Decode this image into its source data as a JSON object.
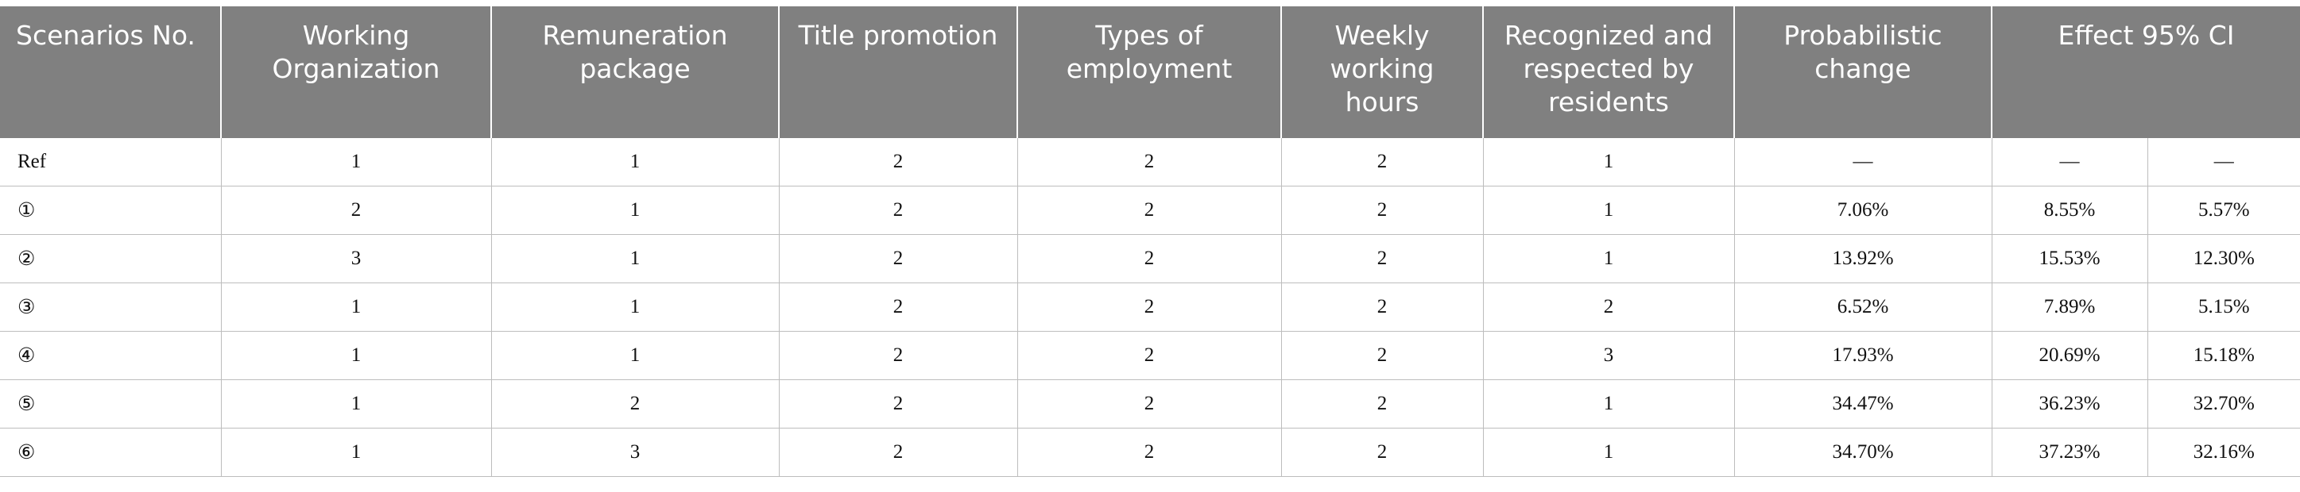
{
  "table": {
    "headers": {
      "scenarios_no": "Scenarios No.",
      "working_organization": "Working Organization",
      "remuneration_package": "Remuneration package",
      "title_promotion": "Title promotion",
      "types_of_employment": "Types of employment",
      "weekly_working_hours": "Weekly working hours",
      "recognized": "Recognized and respected by residents",
      "probabilistic_change": "Probabilistic change",
      "effect_ci": "Effect 95% CI"
    },
    "rows": [
      [
        "Ref",
        "1",
        "1",
        "2",
        "2",
        "2",
        "1",
        "—",
        "—",
        "—"
      ],
      [
        "①",
        "2",
        "1",
        "2",
        "2",
        "2",
        "1",
        "7.06%",
        "8.55%",
        "5.57%"
      ],
      [
        "②",
        "3",
        "1",
        "2",
        "2",
        "2",
        "1",
        "13.92%",
        "15.53%",
        "12.30%"
      ],
      [
        "③",
        "1",
        "1",
        "2",
        "2",
        "2",
        "2",
        "6.52%",
        "7.89%",
        "5.15%"
      ],
      [
        "④",
        "1",
        "1",
        "2",
        "2",
        "2",
        "3",
        "17.93%",
        "20.69%",
        "15.18%"
      ],
      [
        "⑤",
        "1",
        "2",
        "2",
        "2",
        "2",
        "1",
        "34.47%",
        "36.23%",
        "32.70%"
      ],
      [
        "⑥",
        "1",
        "3",
        "2",
        "2",
        "2",
        "1",
        "34.70%",
        "37.23%",
        "32.16%"
      ]
    ]
  }
}
